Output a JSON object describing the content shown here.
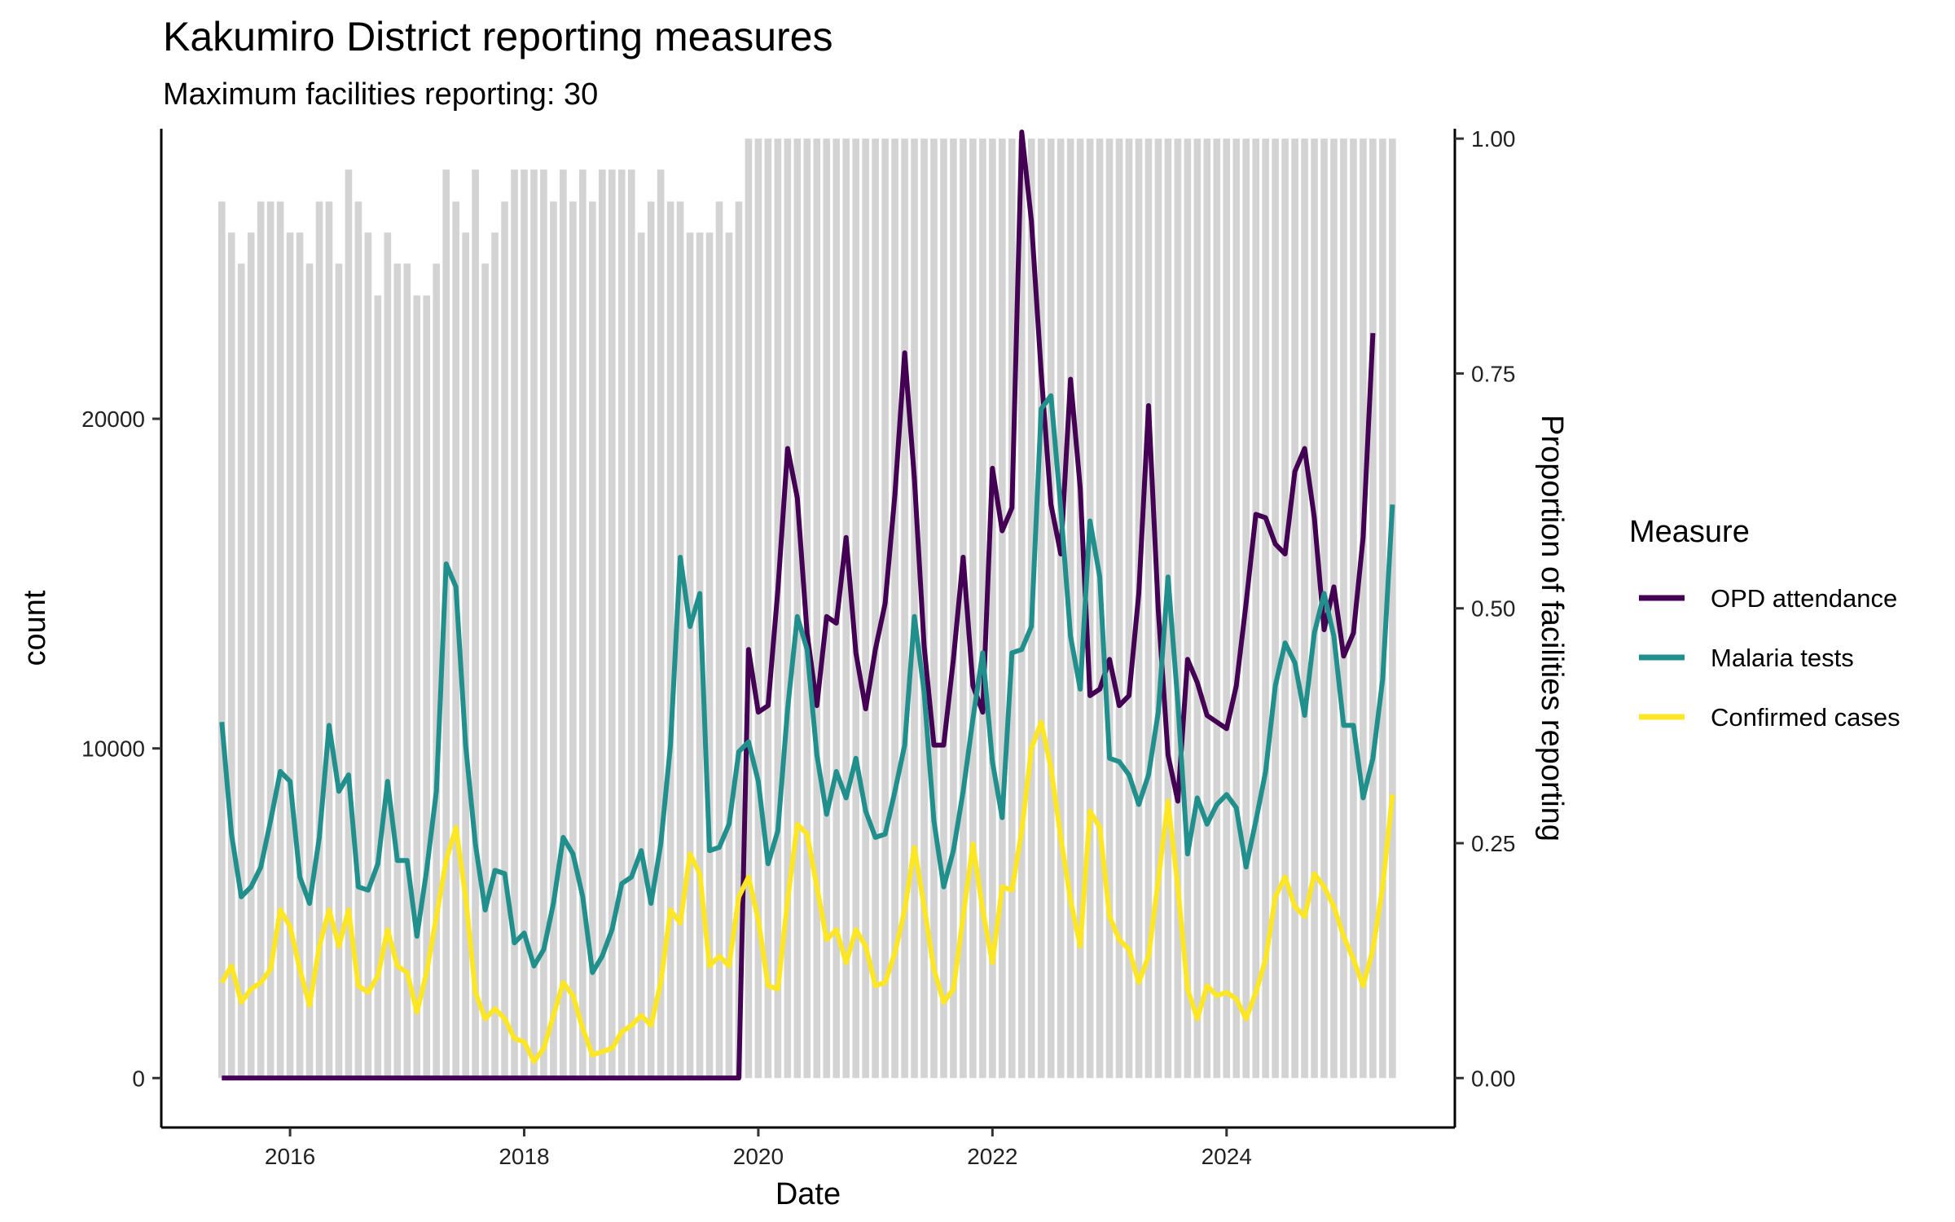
{
  "chart_data": {
    "type": "line",
    "title": "Kakumiro District reporting measures",
    "subtitle": "Maximum facilities reporting: 30",
    "xlabel": "Date",
    "ylabel": "count",
    "y2label": "Proportion of facilities reporting",
    "x_start": "2015-06",
    "x_ticks": [
      "2016",
      "2018",
      "2020",
      "2022",
      "2024"
    ],
    "xlim": [
      2014.9,
      2025.95
    ],
    "ylim": [
      -1500,
      28800
    ],
    "y_ticks": [
      0,
      10000,
      20000
    ],
    "y_tick_labels": [
      "0",
      "10000",
      "20000"
    ],
    "y2lim": [
      0,
      1.0
    ],
    "y2_ticks": [
      0,
      0.25,
      0.5,
      0.75,
      1.0
    ],
    "y2_tick_labels": [
      "0.00",
      "0.25",
      "0.50",
      "0.75",
      "1.00"
    ],
    "legend_title": "Measure",
    "legend_position": "right",
    "bar_color": "#d3d3d3",
    "series": [
      {
        "name": "OPD attendance",
        "color": "#440154",
        "values": [
          0,
          0,
          0,
          0,
          0,
          0,
          0,
          0,
          0,
          0,
          0,
          0,
          0,
          0,
          0,
          0,
          0,
          0,
          0,
          0,
          0,
          0,
          0,
          0,
          0,
          0,
          0,
          0,
          0,
          0,
          0,
          0,
          0,
          0,
          0,
          0,
          0,
          0,
          0,
          0,
          0,
          0,
          0,
          0,
          0,
          0,
          0,
          0,
          0,
          0,
          0,
          0,
          0,
          0,
          13000,
          11100,
          11300,
          14800,
          19100,
          17600,
          13500,
          11300,
          14000,
          13800,
          16400,
          12900,
          11200,
          13000,
          14400,
          17700,
          22000,
          18200,
          13100,
          10100,
          10100,
          12700,
          15800,
          11900,
          11100,
          18500,
          16600,
          17300,
          28700,
          26000,
          21400,
          17400,
          15900,
          21200,
          17900,
          11600,
          11800,
          12700,
          11300,
          11600,
          14700,
          20400,
          14200,
          9800,
          8400,
          12700,
          12000,
          11000,
          10800,
          10600,
          11900,
          14400,
          17100,
          17000,
          16200,
          15900,
          18400,
          19100,
          17000,
          13600,
          14900,
          12800,
          13500,
          16400,
          22600
        ]
      },
      {
        "name": "Malaria tests",
        "color": "#21908c",
        "values": [
          10800,
          7400,
          5500,
          5800,
          6400,
          7800,
          9300,
          9000,
          6100,
          5300,
          7300,
          10700,
          8700,
          9200,
          5800,
          5700,
          6500,
          9000,
          6600,
          6600,
          4300,
          6300,
          8700,
          15600,
          14900,
          10100,
          7100,
          5100,
          6300,
          6200,
          4100,
          4400,
          3400,
          3900,
          5300,
          7300,
          6800,
          5500,
          3200,
          3700,
          4500,
          5900,
          6100,
          6900,
          5300,
          7100,
          10100,
          15800,
          13700,
          14700,
          6900,
          7000,
          7700,
          9900,
          10200,
          9000,
          6500,
          7500,
          11200,
          14000,
          13000,
          9800,
          8000,
          9300,
          8500,
          9700,
          8100,
          7300,
          7400,
          8700,
          10100,
          14000,
          11700,
          7800,
          5800,
          6900,
          8700,
          10900,
          12900,
          9600,
          7900,
          12900,
          13000,
          13700,
          20300,
          20700,
          17300,
          13400,
          11800,
          16900,
          15200,
          9700,
          9600,
          9200,
          8300,
          9200,
          11100,
          15200,
          11400,
          6800,
          8500,
          7700,
          8300,
          8600,
          8200,
          6400,
          7800,
          9300,
          11900,
          13200,
          12600,
          11000,
          13500,
          14700,
          13400,
          10700,
          10700,
          8500,
          9700,
          12100,
          17400
        ]
      },
      {
        "name": "Confirmed cases",
        "color": "#fde725",
        "values": [
          2900,
          3400,
          2300,
          2700,
          2900,
          3300,
          5100,
          4600,
          3300,
          2200,
          4000,
          5100,
          4000,
          5100,
          2800,
          2600,
          3100,
          4500,
          3400,
          3200,
          2000,
          3200,
          4900,
          6600,
          7600,
          5500,
          2600,
          1800,
          2100,
          1800,
          1200,
          1100,
          500,
          900,
          1900,
          2900,
          2500,
          1500,
          700,
          800,
          900,
          1400,
          1600,
          1900,
          1600,
          2900,
          5100,
          4700,
          6800,
          6200,
          3400,
          3700,
          3400,
          5500,
          6100,
          4800,
          2800,
          2700,
          5400,
          7700,
          7400,
          5800,
          4200,
          4500,
          3500,
          4500,
          4000,
          2800,
          2900,
          3800,
          5100,
          7000,
          5200,
          3300,
          2300,
          2700,
          4900,
          7100,
          5100,
          3500,
          5800,
          5700,
          7500,
          10000,
          10800,
          9400,
          7300,
          5400,
          4000,
          8100,
          7600,
          4900,
          4200,
          3900,
          2900,
          3700,
          6000,
          8400,
          5800,
          2700,
          1800,
          2800,
          2500,
          2600,
          2400,
          1800,
          2600,
          3600,
          5500,
          6100,
          5200,
          4900,
          6200,
          5800,
          5200,
          4300,
          3600,
          2800,
          3900,
          5800,
          8600
        ]
      },
      {
        "name": "Proportion of facilities reporting",
        "axis": "y2",
        "values": [
          0.933,
          0.9,
          0.867,
          0.9,
          0.933,
          0.933,
          0.933,
          0.9,
          0.9,
          0.867,
          0.933,
          0.933,
          0.867,
          0.967,
          0.933,
          0.9,
          0.833,
          0.9,
          0.867,
          0.867,
          0.833,
          0.833,
          0.867,
          0.967,
          0.933,
          0.9,
          0.967,
          0.867,
          0.9,
          0.933,
          0.967,
          0.967,
          0.967,
          0.967,
          0.933,
          0.967,
          0.933,
          0.967,
          0.933,
          0.967,
          0.967,
          0.967,
          0.967,
          0.9,
          0.933,
          0.967,
          0.933,
          0.933,
          0.9,
          0.9,
          0.9,
          0.933,
          0.9,
          0.933,
          1,
          1,
          1,
          1,
          1,
          1,
          1,
          1,
          1,
          1,
          1,
          1,
          1,
          1,
          1,
          1,
          1,
          1,
          1,
          1,
          1,
          1,
          1,
          1,
          1,
          1,
          1,
          1,
          1,
          1,
          1,
          1,
          1,
          1,
          1,
          1,
          1,
          1,
          1,
          1,
          1,
          1,
          1,
          1,
          1,
          1,
          1,
          1,
          1,
          1,
          1,
          1,
          1,
          1,
          1,
          1,
          1,
          1,
          1,
          1,
          1,
          1,
          1,
          1,
          1,
          1,
          1
        ]
      }
    ]
  }
}
